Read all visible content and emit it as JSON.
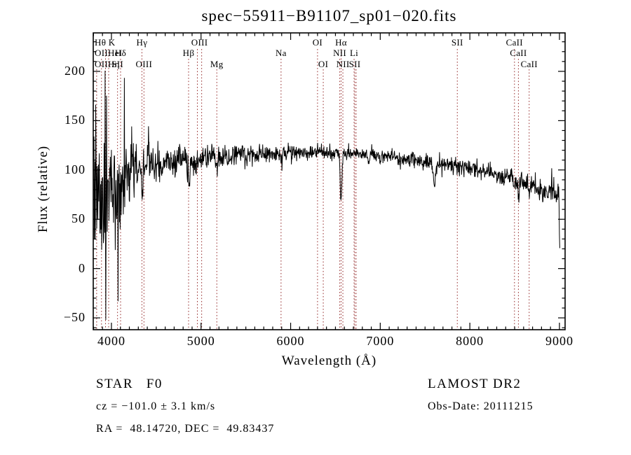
{
  "title": "spec−55911−B91107_sp01−020.fits",
  "chart_data": {
    "type": "line",
    "title": "spec−55911−B91107_sp01−020.fits",
    "xlabel": "Wavelength (Å)",
    "ylabel": "Flux (relative)",
    "xlim": [
      3797,
      9063
    ],
    "ylim": [
      -62,
      239
    ],
    "xticks": [
      4000,
      5000,
      6000,
      7000,
      8000,
      9000
    ],
    "xtick_minor_step": 100,
    "yticks": [
      -50,
      0,
      50,
      100,
      150,
      200
    ],
    "ytick_minor_step": 10,
    "grid": false,
    "trace_color": "#000000",
    "marker_line_color": "#993333",
    "marker_lines": [
      {
        "wavelength": 3798,
        "row": 1
      },
      {
        "wavelength": 3835,
        "row": 3
      },
      {
        "wavelength": 3889,
        "row": 2
      },
      {
        "wavelength": 3934,
        "row": 1
      },
      {
        "wavelength": 3969,
        "row": 1
      },
      {
        "wavelength": 4068,
        "row": 3
      },
      {
        "wavelength": 4102,
        "row": 2
      },
      {
        "wavelength": 4340,
        "row": 1
      },
      {
        "wavelength": 4363,
        "row": 3
      },
      {
        "wavelength": 4861,
        "row": 2
      },
      {
        "wavelength": 4959,
        "row": 1
      },
      {
        "wavelength": 5007,
        "row": 1
      },
      {
        "wavelength": 5176,
        "row": 3
      },
      {
        "wavelength": 5893,
        "row": 2
      },
      {
        "wavelength": 6300,
        "row": 1
      },
      {
        "wavelength": 6364,
        "row": 3
      },
      {
        "wavelength": 6548,
        "row": 2
      },
      {
        "wavelength": 6563,
        "row": 1
      },
      {
        "wavelength": 6583,
        "row": 3
      },
      {
        "wavelength": 6708,
        "row": 2
      },
      {
        "wavelength": 6716,
        "row": 3
      },
      {
        "wavelength": 6731,
        "row": 3
      },
      {
        "wavelength": 7860,
        "row": 1
      },
      {
        "wavelength": 8498,
        "row": 1
      },
      {
        "wavelength": 8542,
        "row": 2
      },
      {
        "wavelength": 8662,
        "row": 3
      }
    ],
    "marker_labels": [
      {
        "text": "Hθ K",
        "row": 1,
        "wavelength": 3798,
        "align": "left-edge"
      },
      {
        "text": "Hγ",
        "row": 1,
        "wavelength": 4340,
        "align": "center"
      },
      {
        "text": "OIII",
        "row": 1,
        "wavelength": 4983,
        "align": "center"
      },
      {
        "text": "OI",
        "row": 1,
        "wavelength": 6300,
        "align": "center"
      },
      {
        "text": "Hα",
        "row": 1,
        "wavelength": 6563,
        "align": "center"
      },
      {
        "text": "SII",
        "row": 1,
        "wavelength": 7860,
        "align": "center"
      },
      {
        "text": "CaII",
        "row": 1,
        "wavelength": 8498,
        "align": "center"
      },
      {
        "text": "OIIHeI",
        "row": 2,
        "wavelength": 3727,
        "align": "left-edge"
      },
      {
        "text": "Hδ",
        "row": 2,
        "wavelength": 4102,
        "align": "center"
      },
      {
        "text": "Hβ",
        "row": 2,
        "wavelength": 4861,
        "align": "center"
      },
      {
        "text": "Na",
        "row": 2,
        "wavelength": 5893,
        "align": "center"
      },
      {
        "text": "NII",
        "row": 2,
        "wavelength": 6548,
        "align": "center"
      },
      {
        "text": "Li",
        "row": 2,
        "wavelength": 6708,
        "align": "center"
      },
      {
        "text": "CaII",
        "row": 2,
        "wavelength": 8542,
        "align": "center"
      },
      {
        "text": "OIIHη",
        "row": 3,
        "wavelength": 3727,
        "align": "left-edge"
      },
      {
        "text": "SII",
        "row": 3,
        "wavelength": 4068,
        "align": "center"
      },
      {
        "text": "OIII",
        "row": 3,
        "wavelength": 4363,
        "align": "center"
      },
      {
        "text": "Mg",
        "row": 3,
        "wavelength": 5176,
        "align": "center"
      },
      {
        "text": "OI",
        "row": 3,
        "wavelength": 6364,
        "align": "center"
      },
      {
        "text": "NII",
        "row": 3,
        "wavelength": 6583,
        "align": "center"
      },
      {
        "text": "SII",
        "row": 3,
        "wavelength": 6716,
        "align": "center"
      },
      {
        "text": "CaII",
        "row": 3,
        "wavelength": 8662,
        "align": "center"
      }
    ],
    "continuum_points": [
      [
        3797,
        72
      ],
      [
        3860,
        76
      ],
      [
        3950,
        80
      ],
      [
        4050,
        86
      ],
      [
        4150,
        92
      ],
      [
        4250,
        98
      ],
      [
        4400,
        104
      ],
      [
        4550,
        108
      ],
      [
        4700,
        110
      ],
      [
        4900,
        111
      ],
      [
        5100,
        113
      ],
      [
        5300,
        114
      ],
      [
        5500,
        115
      ],
      [
        5700,
        116
      ],
      [
        5900,
        116
      ],
      [
        6100,
        117
      ],
      [
        6300,
        118
      ],
      [
        6500,
        117
      ],
      [
        6700,
        116
      ],
      [
        6900,
        115
      ],
      [
        7100,
        113
      ],
      [
        7300,
        111
      ],
      [
        7500,
        109
      ],
      [
        7700,
        106
      ],
      [
        7900,
        103
      ],
      [
        8100,
        99
      ],
      [
        8300,
        95
      ],
      [
        8500,
        91
      ],
      [
        8700,
        84
      ],
      [
        8850,
        78
      ],
      [
        9000,
        72
      ]
    ],
    "absorption_features": [
      {
        "wavelength": 3934,
        "depth": 13,
        "width": 7
      },
      {
        "wavelength": 3969,
        "depth": 11,
        "width": 7
      },
      {
        "wavelength": 4102,
        "depth": 16,
        "width": 11
      },
      {
        "wavelength": 4340,
        "depth": 16,
        "width": 11
      },
      {
        "wavelength": 4861,
        "depth": 20,
        "width": 11
      },
      {
        "wavelength": 5176,
        "depth": 7,
        "width": 12
      },
      {
        "wavelength": 5893,
        "depth": 9,
        "width": 7
      },
      {
        "wavelength": 6563,
        "depth": 46,
        "width": 9
      },
      {
        "wavelength": 6872,
        "depth": 8,
        "width": 9
      },
      {
        "wavelength": 7605,
        "depth": 23,
        "width": 12
      },
      {
        "wavelength": 8498,
        "depth": 13,
        "width": 7
      },
      {
        "wavelength": 8542,
        "depth": 15,
        "width": 7
      },
      {
        "wavelength": 8662,
        "depth": 13,
        "width": 7
      }
    ],
    "noise_sigma_points": [
      [
        3797,
        36
      ],
      [
        3850,
        33
      ],
      [
        3950,
        28
      ],
      [
        4050,
        24
      ],
      [
        4150,
        20
      ],
      [
        4300,
        15
      ],
      [
        4450,
        11
      ],
      [
        4600,
        9
      ],
      [
        4800,
        7.5
      ],
      [
        5000,
        6.5
      ],
      [
        5300,
        5.5
      ],
      [
        5600,
        4.8
      ],
      [
        6000,
        4.2
      ],
      [
        6500,
        3.6
      ],
      [
        7000,
        3.6
      ],
      [
        7500,
        4.0
      ],
      [
        8000,
        4.4
      ],
      [
        8400,
        5
      ],
      [
        8700,
        6
      ],
      [
        9000,
        7
      ]
    ],
    "red_edge_cutoff": 9007
  },
  "annotations": {
    "object_class": "STAR   F0",
    "survey": "LAMOST DR2",
    "velocity": "cz = −101.0 ± 3.1 km/s",
    "obs_date": "Obs-Date: 20111215",
    "coordinates": "RA =  48.14720, DEC =  49.83437"
  }
}
